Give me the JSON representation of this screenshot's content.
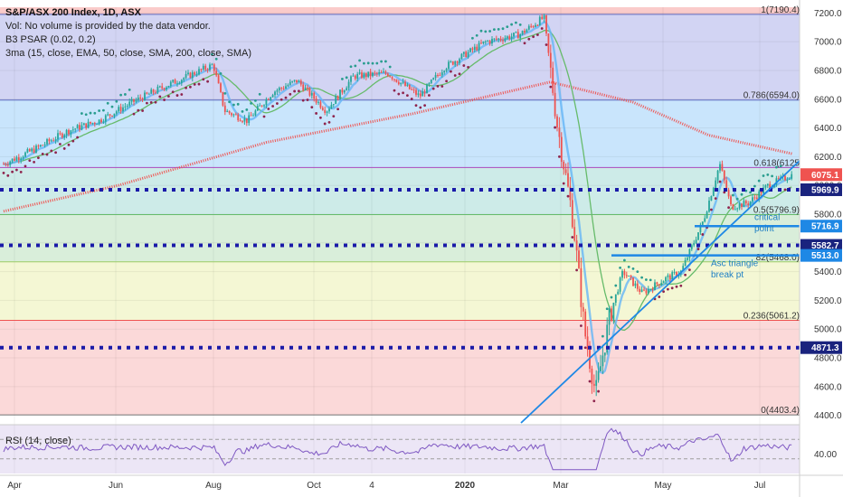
{
  "header": {
    "title": "S&P/ASX 200 Index, 1D, ASX",
    "volume_note": "Vol: No volume is provided by the data vendor.",
    "psar_label": "B3 PSAR (0.02, 0.2)",
    "ma_label": "3ma (15, close, EMA, 50, close, SMA, 200, close, SMA)"
  },
  "rsi": {
    "label": "RSI (14, close)",
    "tick_label": "40.00",
    "upper": 70,
    "lower": 30,
    "shown_value": 40,
    "color": "#7e57c2"
  },
  "chart_data": {
    "type": "candlestick",
    "title": "S&P/ASX 200 Index, 1D, ASX",
    "x_labels": [
      "Apr",
      "Jun",
      "Aug",
      "Oct",
      "4",
      "2020",
      "Mar",
      "May",
      "Jul"
    ],
    "y_ticks": [
      7200,
      7000,
      6800,
      6600,
      6400,
      6200,
      6000,
      5800,
      5600,
      5400,
      5200,
      5000,
      4800,
      4600,
      4400
    ],
    "ylim": [
      4360,
      7240
    ],
    "grid": true,
    "close_path": [
      {
        "date": "2019-03-22",
        "close": 6150
      },
      {
        "date": "2019-04-10",
        "close": 6250
      },
      {
        "date": "2019-05-01",
        "close": 6380
      },
      {
        "date": "2019-05-20",
        "close": 6450
      },
      {
        "date": "2019-06-10",
        "close": 6580
      },
      {
        "date": "2019-06-28",
        "close": 6680
      },
      {
        "date": "2019-07-30",
        "close": 6840
      },
      {
        "date": "2019-08-06",
        "close": 6520
      },
      {
        "date": "2019-08-20",
        "close": 6450
      },
      {
        "date": "2019-09-05",
        "close": 6650
      },
      {
        "date": "2019-09-20",
        "close": 6730
      },
      {
        "date": "2019-10-08",
        "close": 6520
      },
      {
        "date": "2019-10-25",
        "close": 6760
      },
      {
        "date": "2019-11-15",
        "close": 6780
      },
      {
        "date": "2019-12-05",
        "close": 6620
      },
      {
        "date": "2019-12-20",
        "close": 6820
      },
      {
        "date": "2020-01-15",
        "close": 7000
      },
      {
        "date": "2020-02-05",
        "close": 7050
      },
      {
        "date": "2020-02-20",
        "close": 7170
      },
      {
        "date": "2020-02-28",
        "close": 6440
      },
      {
        "date": "2020-03-09",
        "close": 5760
      },
      {
        "date": "2020-03-16",
        "close": 5000
      },
      {
        "date": "2020-03-23",
        "close": 4550
      },
      {
        "date": "2020-04-01",
        "close": 5100
      },
      {
        "date": "2020-04-09",
        "close": 5400
      },
      {
        "date": "2020-04-21",
        "close": 5250
      },
      {
        "date": "2020-05-05",
        "close": 5350
      },
      {
        "date": "2020-05-15",
        "close": 5400
      },
      {
        "date": "2020-05-29",
        "close": 5760
      },
      {
        "date": "2020-06-08",
        "close": 6150
      },
      {
        "date": "2020-06-15",
        "close": 5850
      },
      {
        "date": "2020-06-26",
        "close": 5880
      },
      {
        "date": "2020-07-08",
        "close": 6000
      },
      {
        "date": "2020-07-23",
        "close": 6075
      }
    ],
    "ma200": [
      {
        "date": "2019-03-22",
        "value": 5820
      },
      {
        "date": "2019-06-01",
        "value": 6000
      },
      {
        "date": "2019-09-01",
        "value": 6300
      },
      {
        "date": "2019-12-01",
        "value": 6500
      },
      {
        "date": "2020-02-24",
        "value": 6720
      },
      {
        "date": "2020-04-15",
        "value": 6580
      },
      {
        "date": "2020-06-01",
        "value": 6350
      },
      {
        "date": "2020-07-23",
        "value": 6220
      }
    ],
    "fib_levels": [
      {
        "ratio": "1",
        "value": 7190.4,
        "label": "1(7190.4)"
      },
      {
        "ratio": "0.786",
        "value": 6594.0,
        "label": "0.786(6594.0)"
      },
      {
        "ratio": "0.618",
        "value": 6125,
        "label": "0.618(6125"
      },
      {
        "ratio": "0.5",
        "value": 5796.9,
        "label": "0.5(5796.9)"
      },
      {
        "ratio": "0.382",
        "value": 5468.0,
        "label": "82(5468.0)"
      },
      {
        "ratio": "0.236",
        "value": 5061.2,
        "label": "0.236(5061.2)"
      },
      {
        "ratio": "0",
        "value": 4403.4,
        "label": "0(4403.4)"
      }
    ],
    "dotted_levels": [
      5969.9,
      5582.7,
      4871.3
    ],
    "solid_levels": [
      5716.9,
      5513.0
    ],
    "price_tags": [
      {
        "value": 6075.1,
        "label": "6075.1",
        "color": "#ef5350"
      },
      {
        "value": 5969.9,
        "label": "5969.9",
        "color": "#1a237e"
      },
      {
        "value": 5716.9,
        "label": "5716.9",
        "color": "#1e88e5"
      },
      {
        "value": 5582.7,
        "label": "5582.7",
        "color": "#1a237e"
      },
      {
        "value": 5513.0,
        "label": "5513.0",
        "color": "#1e88e5"
      },
      {
        "value": 4871.3,
        "label": "4871.3",
        "color": "#1a237e"
      }
    ],
    "annotations": [
      {
        "text": "critical",
        "value": 5760
      },
      {
        "text": "point",
        "value": 5680
      },
      {
        "text": "Asc triangle",
        "value": 5440
      },
      {
        "text": "break pt",
        "value": 5360
      }
    ]
  },
  "colors": {
    "up": "#26a69a",
    "down": "#ef5350",
    "ma200": "#ef5350",
    "ma50": "#66bb6a",
    "ema15": "#64b5f6",
    "dotted_level": "#1a1aa8",
    "trendline": "#1e88e5"
  }
}
